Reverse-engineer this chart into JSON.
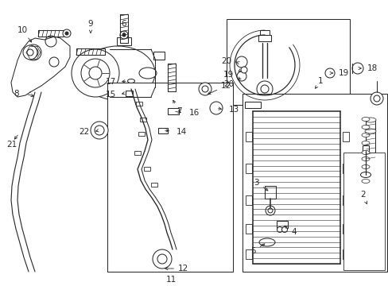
{
  "bg_color": "#ffffff",
  "line_color": "#2a2a2a",
  "fig_width": 4.89,
  "fig_height": 3.6,
  "dpi": 100,
  "lw": 0.75,
  "fs": 7.5
}
